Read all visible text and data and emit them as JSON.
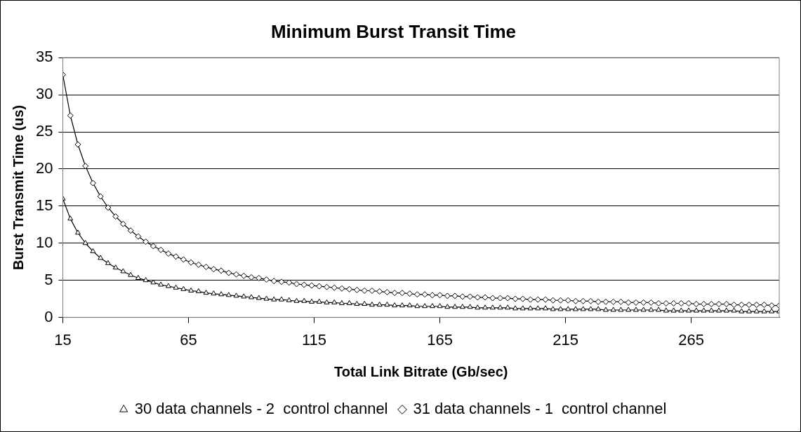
{
  "chart_data": {
    "type": "line",
    "title": "Minimum Burst Transit Time",
    "xlabel": "Total Link Bitrate (Gb/sec)",
    "ylabel": "Burst Transmit Time (us)",
    "x": [
      15,
      18,
      21,
      24,
      27,
      30,
      33,
      36,
      39,
      42,
      45,
      48,
      51,
      54,
      57,
      60,
      63,
      66,
      69,
      72,
      75,
      78,
      81,
      84,
      87,
      90,
      93,
      96,
      99,
      102,
      105,
      108,
      111,
      114,
      117,
      120,
      123,
      126,
      129,
      132,
      135,
      138,
      141,
      144,
      147,
      150,
      153,
      156,
      159,
      162,
      165,
      168,
      171,
      174,
      177,
      180,
      183,
      186,
      189,
      192,
      195,
      198,
      201,
      204,
      207,
      210,
      213,
      216,
      219,
      222,
      225,
      228,
      231,
      234,
      237,
      240,
      243,
      246,
      249,
      252,
      255,
      258,
      261,
      264,
      267,
      270,
      273,
      276,
      279,
      282,
      285,
      288,
      291,
      294,
      297,
      300
    ],
    "series": [
      {
        "name": "30 data channels - 2  control channel",
        "color": "#000000",
        "marker": "triangle",
        "values": [
          16.0,
          13.3,
          11.4,
          10.0,
          8.9,
          8.0,
          7.3,
          6.7,
          6.2,
          5.7,
          5.3,
          5.0,
          4.7,
          4.4,
          4.2,
          4.0,
          3.8,
          3.6,
          3.5,
          3.3,
          3.2,
          3.1,
          3.0,
          2.9,
          2.8,
          2.7,
          2.6,
          2.5,
          2.4,
          2.4,
          2.3,
          2.2,
          2.2,
          2.1,
          2.1,
          2.0,
          2.0,
          1.9,
          1.9,
          1.8,
          1.8,
          1.7,
          1.7,
          1.7,
          1.6,
          1.6,
          1.6,
          1.5,
          1.5,
          1.5,
          1.5,
          1.4,
          1.4,
          1.4,
          1.4,
          1.3,
          1.3,
          1.3,
          1.3,
          1.3,
          1.2,
          1.2,
          1.2,
          1.2,
          1.2,
          1.1,
          1.1,
          1.1,
          1.1,
          1.1,
          1.1,
          1.1,
          1.0,
          1.0,
          1.0,
          1.0,
          1.0,
          1.0,
          1.0,
          1.0,
          0.9,
          0.9,
          0.9,
          0.9,
          0.9,
          0.9,
          0.9,
          0.9,
          0.9,
          0.9,
          0.8,
          0.8,
          0.8,
          0.8,
          0.8,
          0.8
        ]
      },
      {
        "name": "31 data channels - 1  control channel",
        "color": "#000000",
        "marker": "diamond",
        "values": [
          32.7,
          27.2,
          23.3,
          20.4,
          18.1,
          16.3,
          14.8,
          13.6,
          12.6,
          11.7,
          10.9,
          10.2,
          9.6,
          9.1,
          8.6,
          8.2,
          7.8,
          7.4,
          7.1,
          6.8,
          6.5,
          6.3,
          6.0,
          5.8,
          5.6,
          5.4,
          5.3,
          5.1,
          4.9,
          4.8,
          4.7,
          4.5,
          4.4,
          4.3,
          4.2,
          4.1,
          4.0,
          3.9,
          3.8,
          3.7,
          3.6,
          3.6,
          3.5,
          3.4,
          3.3,
          3.3,
          3.2,
          3.1,
          3.1,
          3.0,
          3.0,
          2.9,
          2.9,
          2.8,
          2.8,
          2.7,
          2.7,
          2.6,
          2.6,
          2.6,
          2.5,
          2.5,
          2.4,
          2.4,
          2.4,
          2.3,
          2.3,
          2.3,
          2.2,
          2.2,
          2.2,
          2.1,
          2.1,
          2.1,
          2.1,
          2.0,
          2.0,
          2.0,
          2.0,
          1.9,
          1.9,
          1.9,
          1.9,
          1.9,
          1.8,
          1.8,
          1.8,
          1.8,
          1.8,
          1.7,
          1.7,
          1.7,
          1.7,
          1.7,
          1.6,
          1.6
        ]
      }
    ],
    "xlim": [
      15,
      300
    ],
    "xticks": [
      15,
      65,
      115,
      165,
      215,
      265
    ],
    "ylim": [
      0,
      35
    ],
    "yticks": [
      0,
      5,
      10,
      15,
      20,
      25,
      30,
      35
    ],
    "grid": "y",
    "legend": "bottom",
    "line_style": "solid"
  }
}
